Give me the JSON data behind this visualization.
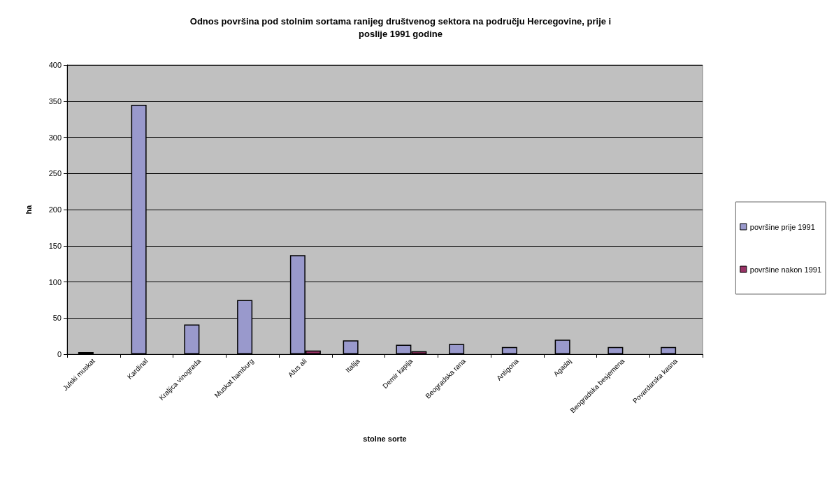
{
  "chart_data": {
    "type": "bar",
    "title": "Odnos površina pod stolnim sortama ranijeg društvenog sektora na području Hercegovine, prije i\nposlije 1991 godine",
    "xlabel": "stolne sorte",
    "ylabel": "ha",
    "categories": [
      "Julski muskat",
      "Kardinal",
      "Kraljica vinograda",
      "Muskat hamburg",
      "Afus ali",
      "Italija",
      "Demir kapija",
      "Beogradska rana",
      "Antigona",
      "Agadaj",
      "Beogradska besjemena",
      "Povardarska kasna"
    ],
    "series": [
      {
        "name": "površine prije 1991",
        "color": "#9999cc",
        "values": [
          3,
          345,
          41,
          75,
          137,
          19,
          13,
          14,
          10,
          20,
          10,
          10
        ]
      },
      {
        "name": "površine nakon 1991",
        "color": "#993366",
        "values": [
          null,
          null,
          null,
          null,
          5,
          null,
          4,
          null,
          null,
          null,
          null,
          null
        ]
      }
    ],
    "ylim": [
      0,
      400
    ],
    "yticks": [
      0,
      50,
      100,
      150,
      200,
      250,
      300,
      350,
      400
    ],
    "grid": "y",
    "legend": "right"
  }
}
